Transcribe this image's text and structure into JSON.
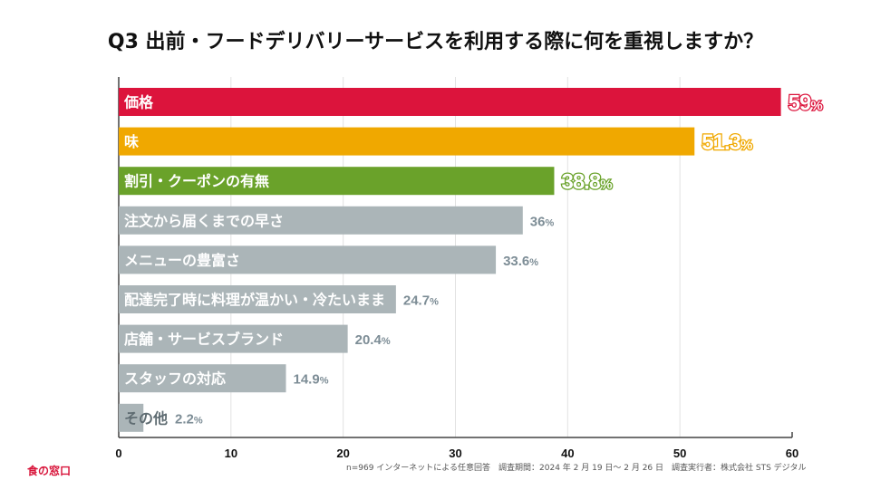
{
  "chart_data": {
    "type": "bar",
    "orientation": "horizontal",
    "title": "Q3 出前・フードデリバリーサービスを利用する際に何を重視しますか？",
    "categories": [
      "価格",
      "味",
      "割引・クーポンの有無",
      "注文から届くまでの早さ",
      "メニューの豊富さ",
      "配達完了時に料理が温かい・冷たいまま",
      "店舗・サービスブランド",
      "スタッフの対応",
      "その他"
    ],
    "values": [
      59,
      51.3,
      38.8,
      36,
      33.6,
      24.7,
      20.4,
      14.9,
      2.2
    ],
    "value_labels": [
      "59",
      "51.3",
      "38.8",
      "36",
      "33.6",
      "24.7",
      "20.4",
      "14.9",
      "2.2"
    ],
    "unit": "%",
    "colors": [
      "#dc143c",
      "#f0a800",
      "#6aa22a",
      "#abb5b8",
      "#abb5b8",
      "#abb5b8",
      "#abb5b8",
      "#abb5b8",
      "#abb5b8"
    ],
    "label_colors": [
      "#dc143c",
      "#f0a800",
      "#6aa22a",
      "#7d8d96",
      "#7d8d96",
      "#7d8d96",
      "#7d8d96",
      "#7d8d96",
      "#7d8d96"
    ],
    "xlim": [
      0,
      60
    ],
    "xticks": [
      "0",
      "10",
      "20",
      "30",
      "40",
      "50",
      "60"
    ],
    "grid": true
  },
  "footer": {
    "brand": "食の窓口",
    "note": "n=969 インターネットによる任意回答　調査期間：2024 年 2 月 19 日〜 2 月 26 日　調査実行者：株式会社 STS デジタル"
  }
}
